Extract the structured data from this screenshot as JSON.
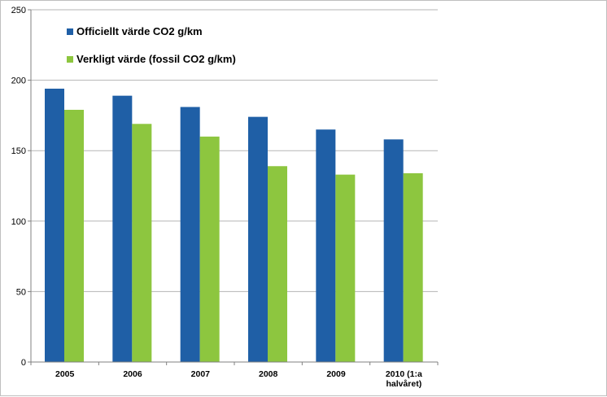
{
  "chart_data": {
    "type": "bar",
    "categories": [
      "2005",
      "2006",
      "2007",
      "2008",
      "2009",
      "2010 (1:a halvåret)"
    ],
    "category_lines": [
      [
        "2005"
      ],
      [
        "2006"
      ],
      [
        "2007"
      ],
      [
        "2008"
      ],
      [
        "2009"
      ],
      [
        "2010 (1:a",
        "halvåret)"
      ]
    ],
    "series": [
      {
        "name": "Officiellt värde CO2 g/km",
        "color": "#1f5fa6",
        "values": [
          194,
          189,
          181,
          174,
          165,
          158
        ]
      },
      {
        "name": "Verkligt värde (fossil CO2 g/km)",
        "color": "#8dc63f",
        "values": [
          179,
          169,
          160,
          139,
          133,
          134
        ]
      }
    ],
    "ylim": [
      0,
      250
    ],
    "yticks": [
      "0",
      "50",
      "100",
      "150",
      "200",
      "250"
    ],
    "grid": true,
    "legend_position": "top-left inside plot",
    "title": "",
    "xlabel": "",
    "ylabel": ""
  }
}
